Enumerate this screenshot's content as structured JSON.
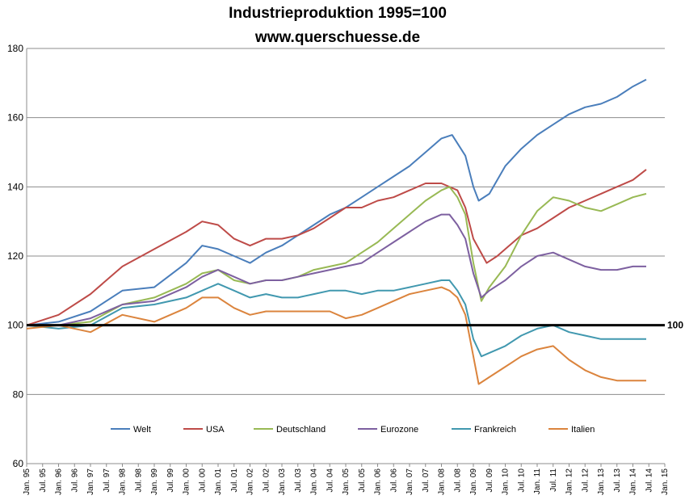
{
  "title_line1": "Industrieproduktion  1995=100",
  "title_line2": "www.querschuesse.de",
  "reference_label": "100",
  "chart_data": {
    "type": "line",
    "title": "Industrieproduktion  1995=100",
    "subtitle": "www.querschuesse.de",
    "xlabel": "",
    "ylabel": "",
    "ylim": [
      60,
      180
    ],
    "yticks": [
      60,
      80,
      100,
      120,
      140,
      160,
      180
    ],
    "xlim": [
      "1995-01",
      "2015-01"
    ],
    "xticks": [
      "Jan. 95",
      "Jul. 95",
      "Jan. 96",
      "Jul. 96",
      "Jan. 97",
      "Jul. 97",
      "Jan. 98",
      "Jul. 98",
      "Jan. 99",
      "Jul. 99",
      "Jan. 00",
      "Jul. 00",
      "Jan. 01",
      "Jul. 01",
      "Jan. 02",
      "Jul. 02",
      "Jan. 03",
      "Jul. 03",
      "Jan. 04",
      "Jul. 04",
      "Jan. 05",
      "Jul. 05",
      "Jan. 06",
      "Jul. 06",
      "Jan. 07",
      "Jul. 07",
      "Jan. 08",
      "Jul. 08",
      "Jan. 09",
      "Jul. 09",
      "Jan. 10",
      "Jul. 10",
      "Jan. 11",
      "Jul. 11",
      "Jan. 12",
      "Jul. 12",
      "Jan. 13",
      "Jul. 13",
      "Jan. 14",
      "Jul. 14",
      "Jan. 15"
    ],
    "grid": true,
    "legend_position": "bottom",
    "reference_line": 100,
    "series": [
      {
        "name": "Welt",
        "color": "#4a7ebb",
        "points": [
          [
            "1995-01",
            100
          ],
          [
            "1996-01",
            101
          ],
          [
            "1997-01",
            104
          ],
          [
            "1998-01",
            110
          ],
          [
            "1999-01",
            111
          ],
          [
            "2000-01",
            118
          ],
          [
            "2000-07",
            123
          ],
          [
            "2001-01",
            122
          ],
          [
            "2001-07",
            120
          ],
          [
            "2002-01",
            118
          ],
          [
            "2002-07",
            121
          ],
          [
            "2003-01",
            123
          ],
          [
            "2003-07",
            126
          ],
          [
            "2004-01",
            129
          ],
          [
            "2004-07",
            132
          ],
          [
            "2005-01",
            134
          ],
          [
            "2005-07",
            137
          ],
          [
            "2006-01",
            140
          ],
          [
            "2006-07",
            143
          ],
          [
            "2007-01",
            146
          ],
          [
            "2007-07",
            150
          ],
          [
            "2008-01",
            154
          ],
          [
            "2008-05",
            155
          ],
          [
            "2008-10",
            149
          ],
          [
            "2009-01",
            140
          ],
          [
            "2009-03",
            136
          ],
          [
            "2009-07",
            138
          ],
          [
            "2010-01",
            146
          ],
          [
            "2010-07",
            151
          ],
          [
            "2011-01",
            155
          ],
          [
            "2011-07",
            158
          ],
          [
            "2012-01",
            161
          ],
          [
            "2012-07",
            163
          ],
          [
            "2013-01",
            164
          ],
          [
            "2013-07",
            166
          ],
          [
            "2014-01",
            169
          ],
          [
            "2014-06",
            171
          ]
        ]
      },
      {
        "name": "USA",
        "color": "#be4b48",
        "points": [
          [
            "1995-01",
            100
          ],
          [
            "1996-01",
            103
          ],
          [
            "1997-01",
            109
          ],
          [
            "1998-01",
            117
          ],
          [
            "1999-01",
            122
          ],
          [
            "2000-01",
            127
          ],
          [
            "2000-07",
            130
          ],
          [
            "2001-01",
            129
          ],
          [
            "2001-07",
            125
          ],
          [
            "2002-01",
            123
          ],
          [
            "2002-07",
            125
          ],
          [
            "2003-01",
            125
          ],
          [
            "2003-07",
            126
          ],
          [
            "2004-01",
            128
          ],
          [
            "2004-07",
            131
          ],
          [
            "2005-01",
            134
          ],
          [
            "2005-07",
            134
          ],
          [
            "2006-01",
            136
          ],
          [
            "2006-07",
            137
          ],
          [
            "2007-01",
            139
          ],
          [
            "2007-07",
            141
          ],
          [
            "2008-01",
            141
          ],
          [
            "2008-07",
            139
          ],
          [
            "2008-10",
            134
          ],
          [
            "2009-01",
            125
          ],
          [
            "2009-06",
            118
          ],
          [
            "2009-10",
            120
          ],
          [
            "2010-01",
            122
          ],
          [
            "2010-07",
            126
          ],
          [
            "2011-01",
            128
          ],
          [
            "2011-07",
            131
          ],
          [
            "2012-01",
            134
          ],
          [
            "2012-07",
            136
          ],
          [
            "2013-01",
            138
          ],
          [
            "2013-07",
            140
          ],
          [
            "2014-01",
            142
          ],
          [
            "2014-06",
            145
          ]
        ]
      },
      {
        "name": "Deutschland",
        "color": "#98b954",
        "points": [
          [
            "1995-01",
            100
          ],
          [
            "1996-01",
            100
          ],
          [
            "1997-01",
            101
          ],
          [
            "1998-01",
            106
          ],
          [
            "1999-01",
            108
          ],
          [
            "2000-01",
            112
          ],
          [
            "2000-07",
            115
          ],
          [
            "2001-01",
            116
          ],
          [
            "2001-07",
            113
          ],
          [
            "2002-01",
            112
          ],
          [
            "2002-07",
            113
          ],
          [
            "2003-01",
            113
          ],
          [
            "2003-07",
            114
          ],
          [
            "2004-01",
            116
          ],
          [
            "2004-07",
            117
          ],
          [
            "2005-01",
            118
          ],
          [
            "2005-07",
            121
          ],
          [
            "2006-01",
            124
          ],
          [
            "2006-07",
            128
          ],
          [
            "2007-01",
            132
          ],
          [
            "2007-07",
            136
          ],
          [
            "2008-01",
            139
          ],
          [
            "2008-04",
            140
          ],
          [
            "2008-07",
            137
          ],
          [
            "2008-10",
            132
          ],
          [
            "2009-01",
            118
          ],
          [
            "2009-04",
            107
          ],
          [
            "2009-07",
            111
          ],
          [
            "2010-01",
            117
          ],
          [
            "2010-07",
            126
          ],
          [
            "2011-01",
            133
          ],
          [
            "2011-07",
            137
          ],
          [
            "2012-01",
            136
          ],
          [
            "2012-07",
            134
          ],
          [
            "2013-01",
            133
          ],
          [
            "2013-07",
            135
          ],
          [
            "2014-01",
            137
          ],
          [
            "2014-06",
            138
          ]
        ]
      },
      {
        "name": "Eurozone",
        "color": "#7d60a0",
        "points": [
          [
            "1995-01",
            100
          ],
          [
            "1996-01",
            100
          ],
          [
            "1997-01",
            102
          ],
          [
            "1998-01",
            106
          ],
          [
            "1999-01",
            107
          ],
          [
            "2000-01",
            111
          ],
          [
            "2000-07",
            114
          ],
          [
            "2001-01",
            116
          ],
          [
            "2001-07",
            114
          ],
          [
            "2002-01",
            112
          ],
          [
            "2002-07",
            113
          ],
          [
            "2003-01",
            113
          ],
          [
            "2003-07",
            114
          ],
          [
            "2004-01",
            115
          ],
          [
            "2004-07",
            116
          ],
          [
            "2005-01",
            117
          ],
          [
            "2005-07",
            118
          ],
          [
            "2006-01",
            121
          ],
          [
            "2006-07",
            124
          ],
          [
            "2007-01",
            127
          ],
          [
            "2007-07",
            130
          ],
          [
            "2008-01",
            132
          ],
          [
            "2008-04",
            132
          ],
          [
            "2008-07",
            129
          ],
          [
            "2008-10",
            125
          ],
          [
            "2009-01",
            115
          ],
          [
            "2009-04",
            108
          ],
          [
            "2009-07",
            110
          ],
          [
            "2010-01",
            113
          ],
          [
            "2010-07",
            117
          ],
          [
            "2011-01",
            120
          ],
          [
            "2011-07",
            121
          ],
          [
            "2012-01",
            119
          ],
          [
            "2012-07",
            117
          ],
          [
            "2013-01",
            116
          ],
          [
            "2013-07",
            116
          ],
          [
            "2014-01",
            117
          ],
          [
            "2014-06",
            117
          ]
        ]
      },
      {
        "name": "Frankreich",
        "color": "#4198af",
        "points": [
          [
            "1995-01",
            100
          ],
          [
            "1996-01",
            99
          ],
          [
            "1997-01",
            100
          ],
          [
            "1998-01",
            105
          ],
          [
            "1999-01",
            106
          ],
          [
            "2000-01",
            108
          ],
          [
            "2000-07",
            110
          ],
          [
            "2001-01",
            112
          ],
          [
            "2001-07",
            110
          ],
          [
            "2002-01",
            108
          ],
          [
            "2002-07",
            109
          ],
          [
            "2003-01",
            108
          ],
          [
            "2003-07",
            108
          ],
          [
            "2004-01",
            109
          ],
          [
            "2004-07",
            110
          ],
          [
            "2005-01",
            110
          ],
          [
            "2005-07",
            109
          ],
          [
            "2006-01",
            110
          ],
          [
            "2006-07",
            110
          ],
          [
            "2007-01",
            111
          ],
          [
            "2007-07",
            112
          ],
          [
            "2008-01",
            113
          ],
          [
            "2008-04",
            113
          ],
          [
            "2008-07",
            110
          ],
          [
            "2008-10",
            106
          ],
          [
            "2009-01",
            96
          ],
          [
            "2009-04",
            91
          ],
          [
            "2009-07",
            92
          ],
          [
            "2010-01",
            94
          ],
          [
            "2010-07",
            97
          ],
          [
            "2011-01",
            99
          ],
          [
            "2011-07",
            100
          ],
          [
            "2012-01",
            98
          ],
          [
            "2012-07",
            97
          ],
          [
            "2013-01",
            96
          ],
          [
            "2013-07",
            96
          ],
          [
            "2014-01",
            96
          ],
          [
            "2014-06",
            96
          ]
        ]
      },
      {
        "name": "Italien",
        "color": "#db843d",
        "points": [
          [
            "1995-01",
            99
          ],
          [
            "1996-01",
            100
          ],
          [
            "1997-01",
            98
          ],
          [
            "1998-01",
            103
          ],
          [
            "1999-01",
            101
          ],
          [
            "2000-01",
            105
          ],
          [
            "2000-07",
            108
          ],
          [
            "2001-01",
            108
          ],
          [
            "2001-07",
            105
          ],
          [
            "2002-01",
            103
          ],
          [
            "2002-07",
            104
          ],
          [
            "2003-01",
            104
          ],
          [
            "2003-07",
            104
          ],
          [
            "2004-01",
            104
          ],
          [
            "2004-07",
            104
          ],
          [
            "2005-01",
            102
          ],
          [
            "2005-07",
            103
          ],
          [
            "2006-01",
            105
          ],
          [
            "2006-07",
            107
          ],
          [
            "2007-01",
            109
          ],
          [
            "2007-07",
            110
          ],
          [
            "2008-01",
            111
          ],
          [
            "2008-04",
            110
          ],
          [
            "2008-07",
            108
          ],
          [
            "2008-10",
            103
          ],
          [
            "2009-01",
            91
          ],
          [
            "2009-03",
            83
          ],
          [
            "2009-07",
            85
          ],
          [
            "2010-01",
            88
          ],
          [
            "2010-07",
            91
          ],
          [
            "2011-01",
            93
          ],
          [
            "2011-07",
            94
          ],
          [
            "2012-01",
            90
          ],
          [
            "2012-07",
            87
          ],
          [
            "2013-01",
            85
          ],
          [
            "2013-07",
            84
          ],
          [
            "2014-01",
            84
          ],
          [
            "2014-06",
            84
          ]
        ]
      }
    ]
  }
}
